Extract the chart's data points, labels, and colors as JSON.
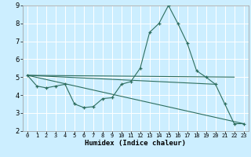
{
  "xlabel": "Humidex (Indice chaleur)",
  "xlim": [
    -0.5,
    23.5
  ],
  "ylim": [
    2,
    9
  ],
  "yticks": [
    2,
    3,
    4,
    5,
    6,
    7,
    8,
    9
  ],
  "xticks": [
    0,
    1,
    2,
    3,
    4,
    5,
    6,
    7,
    8,
    9,
    10,
    11,
    12,
    13,
    14,
    15,
    16,
    17,
    18,
    19,
    20,
    21,
    22,
    23
  ],
  "bg_color": "#cceeff",
  "line_color": "#2d6e5e",
  "grid_color": "#ffffff",
  "main_series": {
    "x": [
      0,
      1,
      2,
      3,
      4,
      5,
      6,
      7,
      8,
      9,
      10,
      11,
      12,
      13,
      14,
      15,
      16,
      17,
      18,
      19,
      20,
      21,
      22,
      23
    ],
    "y": [
      5.1,
      4.5,
      4.4,
      4.5,
      4.6,
      3.5,
      3.3,
      3.35,
      3.8,
      3.85,
      4.6,
      4.75,
      5.5,
      7.5,
      8.0,
      9.0,
      8.0,
      6.9,
      5.35,
      5.0,
      4.6,
      3.5,
      2.4,
      2.4
    ]
  },
  "straight_lines": [
    {
      "x": [
        0,
        23
      ],
      "y": [
        5.1,
        2.4
      ]
    },
    {
      "x": [
        0,
        22
      ],
      "y": [
        5.1,
        5.0
      ]
    },
    {
      "x": [
        0,
        20
      ],
      "y": [
        5.1,
        4.6
      ]
    }
  ]
}
